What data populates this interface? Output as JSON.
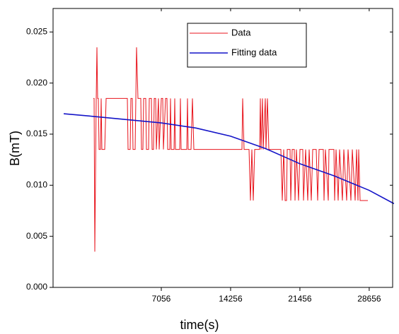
{
  "chart_data": {
    "type": "line",
    "xlabel": "time(s)",
    "ylabel": "B(mT)",
    "xlim": [
      -4190,
      31090
    ],
    "ylim": [
      0,
      0.0273
    ],
    "xticks": [
      7056,
      14256,
      21456,
      28656
    ],
    "yticks": [
      {
        "value": 0,
        "label": "0.000"
      },
      {
        "value": 0.005,
        "label": "0.005"
      },
      {
        "value": 0.01,
        "label": "0.010"
      },
      {
        "value": 0.015,
        "label": "0.015"
      },
      {
        "value": 0.02,
        "label": "0.020"
      },
      {
        "value": 0.025,
        "label": "0.025"
      }
    ],
    "legend": "upper right",
    "series": [
      {
        "name": "Data",
        "color": "#e8141c",
        "x": [
          0,
          74,
          147,
          294,
          368,
          441,
          515,
          588,
          735,
          809,
          882,
          1176,
          1323,
          3528,
          3602,
          3822,
          3896,
          4043,
          4116,
          4337,
          4410,
          4484,
          4631,
          4925,
          4998,
          5145,
          5219,
          5439,
          5513,
          5733,
          5807,
          6027,
          6101,
          6248,
          6321,
          6468,
          6542,
          6762,
          6836,
          7056,
          7203,
          7277,
          7497,
          7644,
          7718,
          7938,
          8012,
          8085,
          8379,
          8453,
          8526,
          8967,
          9041,
          9114,
          9702,
          9776,
          9849,
          10143,
          10290,
          10437,
          15435,
          15509,
          15656,
          16170,
          16317,
          16464,
          16611,
          16758,
          17273,
          17346,
          17420,
          17567,
          17640,
          17861,
          17934,
          18081,
          18228,
          19478,
          19625,
          19772,
          19919,
          20066,
          20139,
          20433,
          20507,
          20654,
          20874,
          20948,
          21095,
          21315,
          21462,
          21756,
          21830,
          22050,
          22271,
          22418,
          22638,
          22785,
          23153,
          23300,
          23447,
          23888,
          23961,
          24108,
          24402,
          24476,
          24990,
          25064,
          25211,
          25431,
          25578,
          25872,
          26019,
          26313,
          26460,
          26754,
          26901,
          27195,
          27342,
          27489,
          27563,
          27710,
          28518
        ],
        "values": [
          0.0185,
          0.0185,
          0.0035,
          0.0185,
          0.0235,
          0.0185,
          0.0185,
          0.0135,
          0.0135,
          0.0185,
          0.0135,
          0.0135,
          0.0185,
          0.0185,
          0.0135,
          0.0135,
          0.0185,
          0.0185,
          0.0135,
          0.0135,
          0.0185,
          0.0235,
          0.0185,
          0.0185,
          0.0135,
          0.0135,
          0.0185,
          0.0185,
          0.0135,
          0.0135,
          0.0185,
          0.0185,
          0.0135,
          0.0135,
          0.0185,
          0.0185,
          0.0135,
          0.0185,
          0.0135,
          0.0185,
          0.0185,
          0.0135,
          0.0185,
          0.0185,
          0.0135,
          0.0135,
          0.0185,
          0.0135,
          0.0135,
          0.0185,
          0.0135,
          0.0135,
          0.0185,
          0.0135,
          0.0135,
          0.0185,
          0.0135,
          0.0135,
          0.0185,
          0.0135,
          0.0135,
          0.0185,
          0.0135,
          0.0135,
          0.0085,
          0.0135,
          0.0085,
          0.0135,
          0.0135,
          0.0185,
          0.0135,
          0.0185,
          0.0135,
          0.0185,
          0.0135,
          0.0185,
          0.0135,
          0.0135,
          0.0085,
          0.0135,
          0.0085,
          0.0085,
          0.0135,
          0.0135,
          0.0085,
          0.0135,
          0.0135,
          0.0085,
          0.0135,
          0.0085,
          0.0135,
          0.0135,
          0.0085,
          0.0135,
          0.0085,
          0.0135,
          0.0085,
          0.0135,
          0.0135,
          0.0085,
          0.0135,
          0.0135,
          0.0085,
          0.0135,
          0.0085,
          0.0135,
          0.0135,
          0.0085,
          0.0135,
          0.0085,
          0.0135,
          0.0085,
          0.0135,
          0.0085,
          0.0135,
          0.0085,
          0.0135,
          0.0085,
          0.0135,
          0.0085,
          0.0135,
          0.0085,
          0.0085
        ]
      },
      {
        "name": "Fitting data",
        "color": "#1414c8",
        "x": [
          -3083,
          -144,
          7056,
          10656,
          14256,
          17856,
          21456,
          25056,
          28656,
          31228
        ],
        "values": [
          0.017,
          0.01675,
          0.0161,
          0.0156,
          0.0148,
          0.0136,
          0.0121,
          0.0109,
          0.0095,
          0.0082
        ]
      }
    ]
  }
}
